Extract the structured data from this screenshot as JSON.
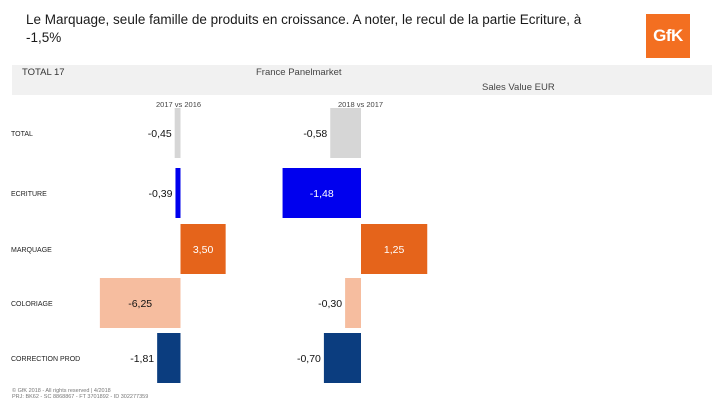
{
  "header": {
    "headline": "Le Marquage, seule famille de produits en croissance. A noter, le recul de la partie Ecriture, à -1,5%",
    "logo_text": "GfK",
    "total_label": "TOTAL 17",
    "market_label": "France Panelmarket",
    "measure_label": "Sales Value EUR"
  },
  "footer": {
    "line1": "© GfK 2018 - All rights reserved | 4/2018",
    "line2": "PRJ: BK62 - SC 8868867 - FT 3701892 - ID 302277359"
  },
  "colors": {
    "total": "#d6d6d6",
    "ecriture": "#0000ee",
    "marquage": "#e5641b",
    "coloriage": "#f6bd9f",
    "correction": "#0b3d7f",
    "logo": "#f36f21"
  },
  "chart_data": {
    "type": "bar",
    "orientation": "horizontal",
    "categories": [
      "TOTAL",
      "ECRITURE",
      "MARQUAGE",
      "COLORIAGE",
      "CORRECTION PROD"
    ],
    "series": [
      {
        "name": "2017 vs 2016",
        "values": [
          -0.45,
          -0.39,
          3.5,
          -6.25,
          -1.81
        ],
        "labels": [
          "-0,45",
          "-0,39",
          "3,50",
          "-6,25",
          "-1,81"
        ]
      },
      {
        "name": "2018 vs 2017",
        "values": [
          -0.58,
          -1.48,
          1.25,
          -0.3,
          -0.7
        ],
        "labels": [
          "-0,58",
          "-1,48",
          "1,25",
          "-0,30",
          "-0,70"
        ]
      }
    ]
  }
}
